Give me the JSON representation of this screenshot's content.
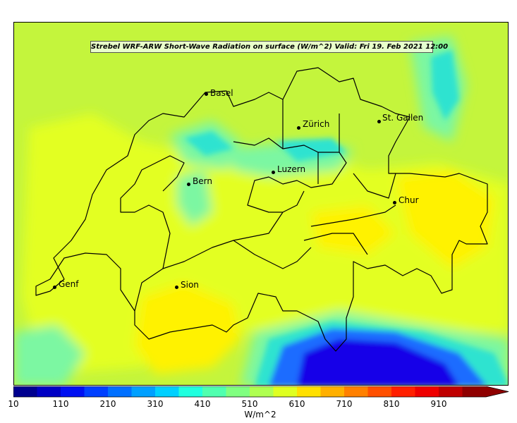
{
  "title": "Strebel WRF-ARW Short-Wave Radiation on surface (W/m^2)    Valid: Fri 19. Feb 2021 12:00",
  "cities": [
    {
      "name": "Basel"
    },
    {
      "name": "Zürich"
    },
    {
      "name": "St. Gallen"
    },
    {
      "name": "Luzern"
    },
    {
      "name": "Bern"
    },
    {
      "name": "Chur"
    },
    {
      "name": "Genf"
    },
    {
      "name": "Sion"
    }
  ],
  "colorbar": {
    "unit": "W/m^2",
    "min": 10,
    "max": 1010,
    "ticks": [
      "10",
      "110",
      "210",
      "310",
      "410",
      "510",
      "610",
      "710",
      "810",
      "910"
    ],
    "colors": [
      "#00008f",
      "#0000c4",
      "#0010f2",
      "#0040ff",
      "#0070ff",
      "#00a0ff",
      "#00d0ff",
      "#20ffdf",
      "#50ffaf",
      "#80ff80",
      "#afff50",
      "#dfff20",
      "#ffe000",
      "#ffb000",
      "#ff8000",
      "#ff5000",
      "#ff2000",
      "#ef0000",
      "#bf0000",
      "#8f0000"
    ]
  },
  "field_colors": {
    "background": "#c4f53c",
    "bright": "#e3ff21",
    "yellow": "#fff200",
    "cyan_light": "#7cf7a2",
    "cyan": "#2fe3d0",
    "blue": "#1c6cff",
    "deep_blue": "#1206e8"
  }
}
